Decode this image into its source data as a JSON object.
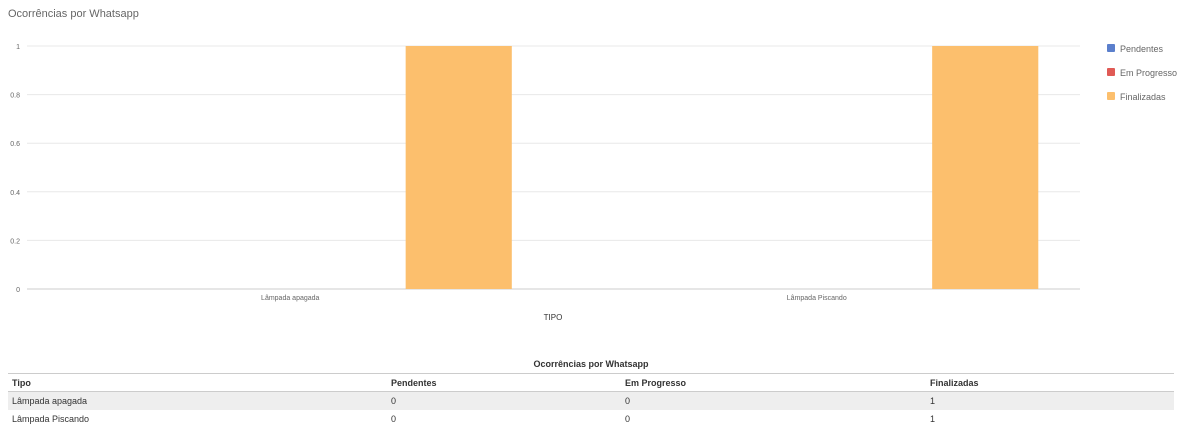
{
  "title": "Ocorrências por Whatsapp",
  "legend": [
    {
      "label": "Pendentes",
      "color": "#5b7fcc"
    },
    {
      "label": "Em Progresso",
      "color": "#e05a55"
    },
    {
      "label": "Finalizadas",
      "color": "#fcbf6d"
    }
  ],
  "chart_data": {
    "type": "bar",
    "title": "Ocorrências por Whatsapp",
    "categories": [
      "Lâmpada apagada",
      "Lâmpada Piscando"
    ],
    "series": [
      {
        "name": "Pendentes",
        "values": [
          0,
          0
        ],
        "color": "#5b7fcc"
      },
      {
        "name": "Em Progresso",
        "values": [
          0,
          0
        ],
        "color": "#e05a55"
      },
      {
        "name": "Finalizadas",
        "values": [
          1,
          1
        ],
        "color": "#fcbf6d"
      }
    ],
    "xlabel": "TIPO",
    "ylabel": "",
    "ylim": [
      0,
      1
    ],
    "yticks": [
      0,
      0.2,
      0.4,
      0.6,
      0.8,
      1
    ],
    "ytick_labels": [
      "0",
      "0.2",
      "0.4",
      "0.6",
      "0.8",
      "1"
    ],
    "grid": true,
    "legend_position": "right"
  },
  "table": {
    "caption": "Ocorrências por Whatsapp",
    "headers": [
      "Tipo",
      "Pendentes",
      "Em Progresso",
      "Finalizadas"
    ],
    "rows": [
      [
        "Lâmpada apagada",
        "0",
        "0",
        "1"
      ],
      [
        "Lâmpada Piscando",
        "0",
        "0",
        "1"
      ]
    ]
  }
}
